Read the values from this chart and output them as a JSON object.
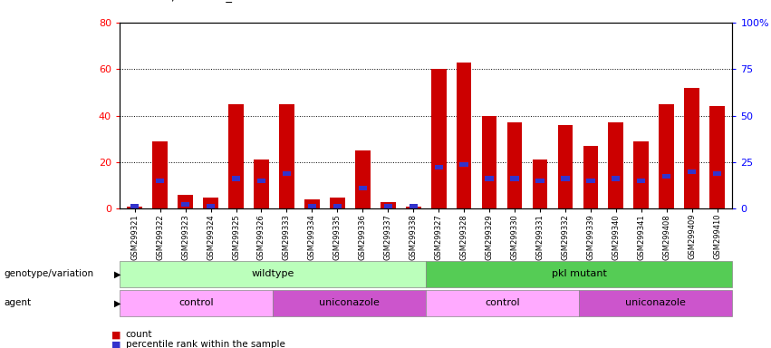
{
  "samples": [
    "GSM299321",
    "GSM299322",
    "GSM299323",
    "GSM299324",
    "GSM299325",
    "GSM299326",
    "GSM299333",
    "GSM299334",
    "GSM299335",
    "GSM299336",
    "GSM299337",
    "GSM299338",
    "GSM299327",
    "GSM299328",
    "GSM299329",
    "GSM299330",
    "GSM299331",
    "GSM299332",
    "GSM299339",
    "GSM299340",
    "GSM299341",
    "GSM299408",
    "GSM299409",
    "GSM299410"
  ],
  "count": [
    1,
    29,
    6,
    5,
    45,
    21,
    45,
    4,
    5,
    25,
    3,
    1,
    60,
    63,
    40,
    37,
    21,
    36,
    27,
    37,
    29,
    45,
    52,
    44
  ],
  "percentile": [
    2,
    13,
    3,
    2,
    14,
    13,
    16,
    1,
    2,
    10,
    2,
    1,
    19,
    20,
    14,
    14,
    13,
    14,
    13,
    14,
    13,
    15,
    17,
    16
  ],
  "ylim_left": [
    0,
    80
  ],
  "ylim_right": [
    0,
    100
  ],
  "yticks_left": [
    0,
    20,
    40,
    60,
    80
  ],
  "yticks_right": [
    0,
    25,
    50,
    75,
    100
  ],
  "ytick_labels_right": [
    "0",
    "25",
    "50",
    "75",
    "100%"
  ],
  "bar_color_count": "#cc0000",
  "bar_color_pct": "#3333cc",
  "bar_width": 0.6,
  "genotype_groups": [
    {
      "label": "wildtype",
      "start": 0,
      "end": 11,
      "color": "#bbffbb"
    },
    {
      "label": "pkl mutant",
      "start": 12,
      "end": 23,
      "color": "#55cc55"
    }
  ],
  "agent_groups": [
    {
      "label": "control",
      "start": 0,
      "end": 5,
      "color": "#ffaaff"
    },
    {
      "label": "uniconazole",
      "start": 6,
      "end": 11,
      "color": "#cc55cc"
    },
    {
      "label": "control",
      "start": 12,
      "end": 17,
      "color": "#ffaaff"
    },
    {
      "label": "uniconazole",
      "start": 18,
      "end": 23,
      "color": "#cc55cc"
    }
  ],
  "genotype_label": "genotype/variation",
  "agent_label": "agent",
  "legend_count": "count",
  "legend_pct": "percentile rank within the sample",
  "fig_bg": "#ffffff",
  "plot_bg": "#ffffff"
}
